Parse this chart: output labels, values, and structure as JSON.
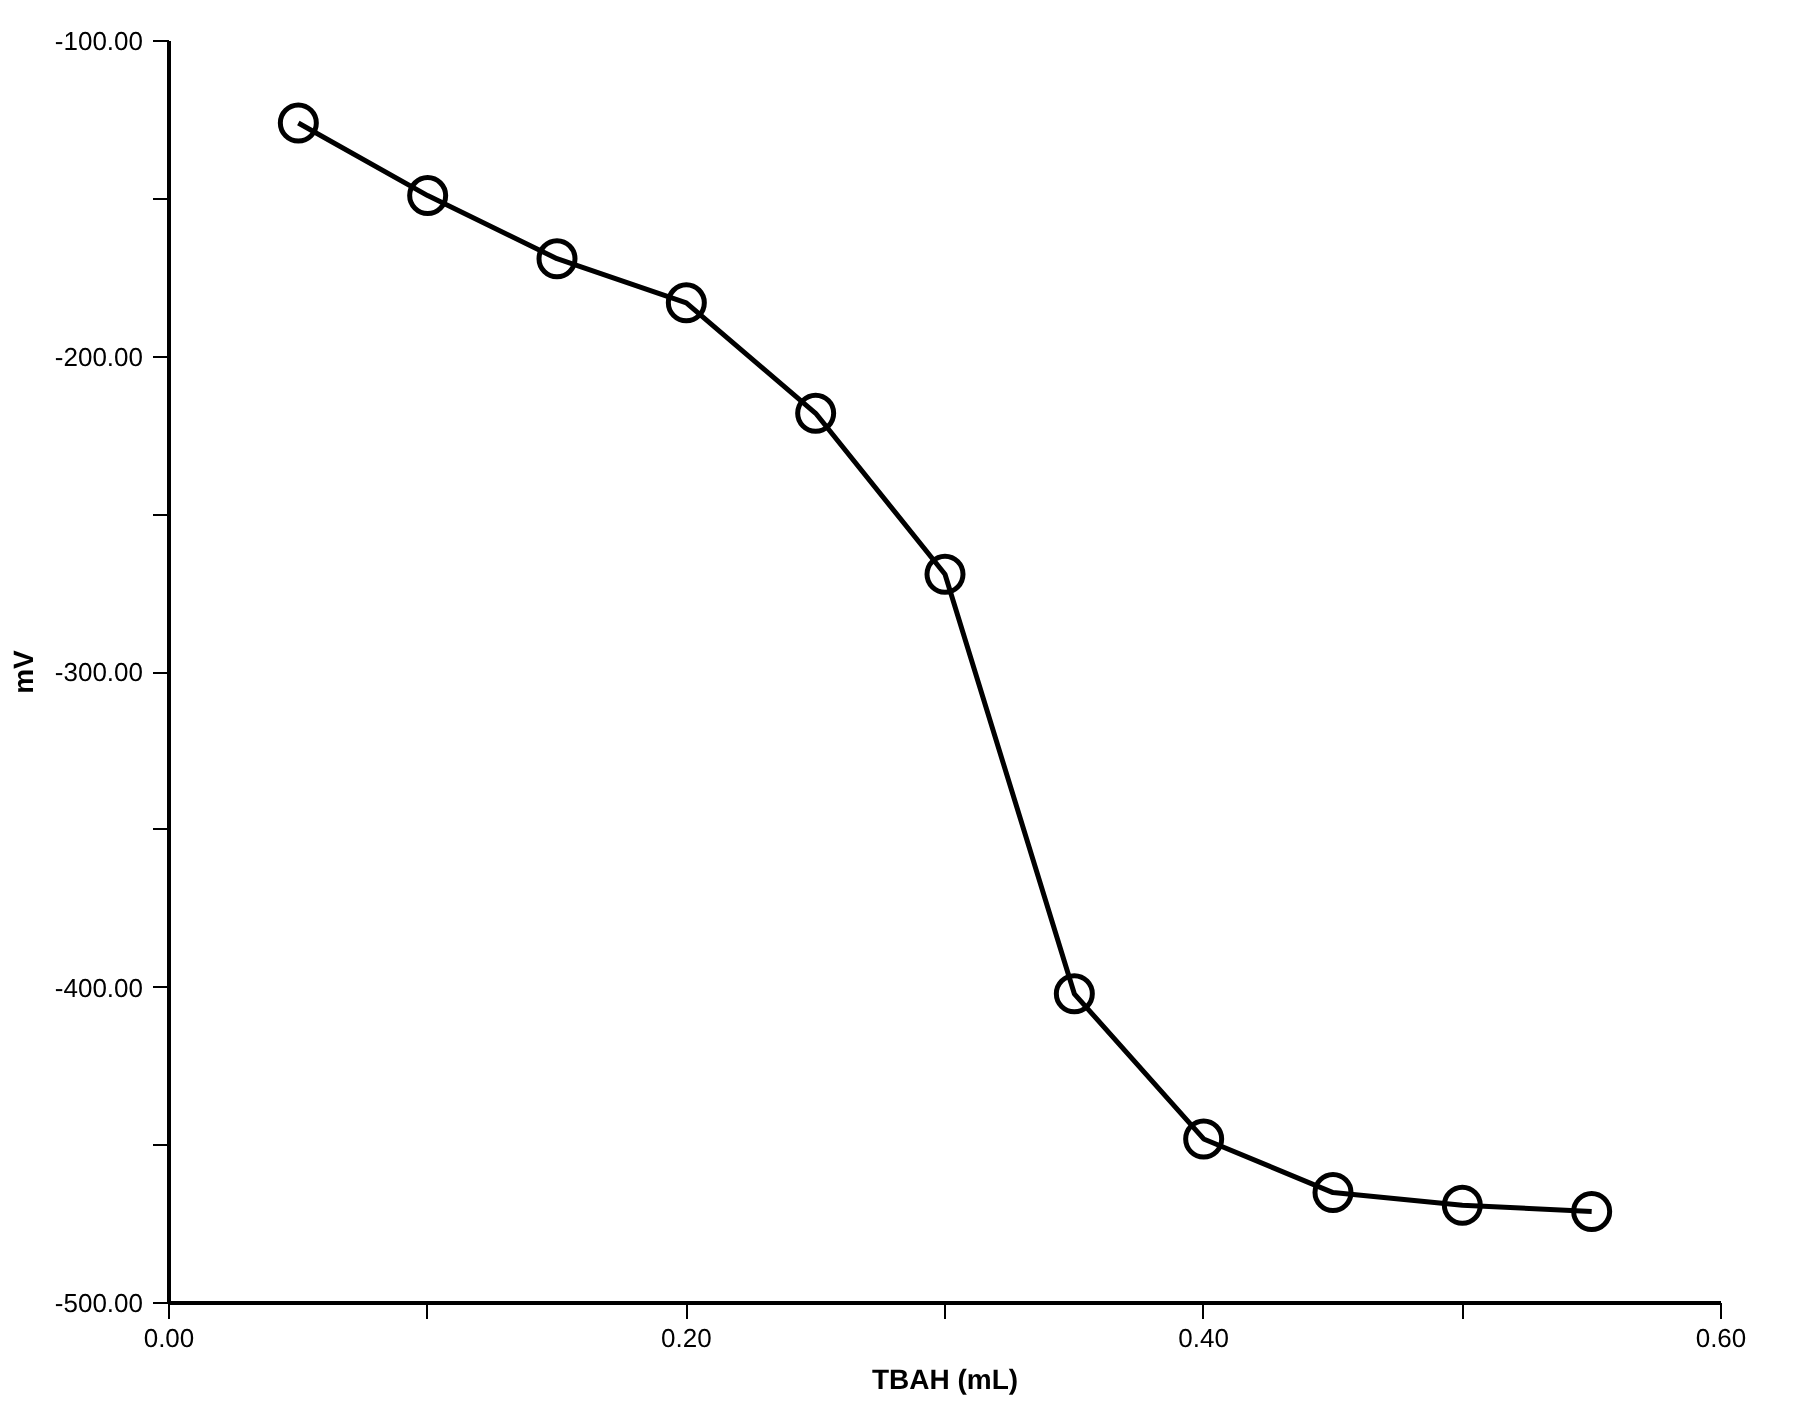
{
  "chart_data": {
    "type": "line",
    "xlabel": "TBAH (mL)",
    "ylabel": "mV",
    "x": [
      0.05,
      0.1,
      0.15,
      0.2,
      0.25,
      0.3,
      0.35,
      0.4,
      0.45,
      0.5,
      0.55
    ],
    "series": [
      {
        "color": "#000000",
        "values": [
          -126,
          -149,
          -169,
          -183,
          -218,
          -269,
          -402,
          -448,
          -465,
          -469,
          -471
        ]
      }
    ],
    "xlim": [
      0,
      0.6
    ],
    "xticks": [
      {
        "value": 0,
        "label": "0.00"
      },
      {
        "value": 0.1,
        "label": null
      },
      {
        "value": 0.2,
        "label": "0.20"
      },
      {
        "value": 0.3,
        "label": null
      },
      {
        "value": 0.4,
        "label": "0.40"
      },
      {
        "value": 0.5,
        "label": null
      },
      {
        "value": 0.6,
        "label": "0.60"
      }
    ],
    "ylim": [
      -500,
      -100
    ],
    "yticks": [
      {
        "value": -500,
        "label": "-500.00"
      },
      {
        "value": -450,
        "label": null
      },
      {
        "value": -400,
        "label": "-400.00"
      },
      {
        "value": -350,
        "label": null
      },
      {
        "value": -300,
        "label": "-300.00"
      },
      {
        "value": -250,
        "label": null
      },
      {
        "value": -200,
        "label": "-200.00"
      },
      {
        "value": -150,
        "label": null
      },
      {
        "value": -100,
        "label": "-100.00"
      }
    ],
    "grid": false,
    "marker": "circle",
    "line_style": "solid"
  }
}
